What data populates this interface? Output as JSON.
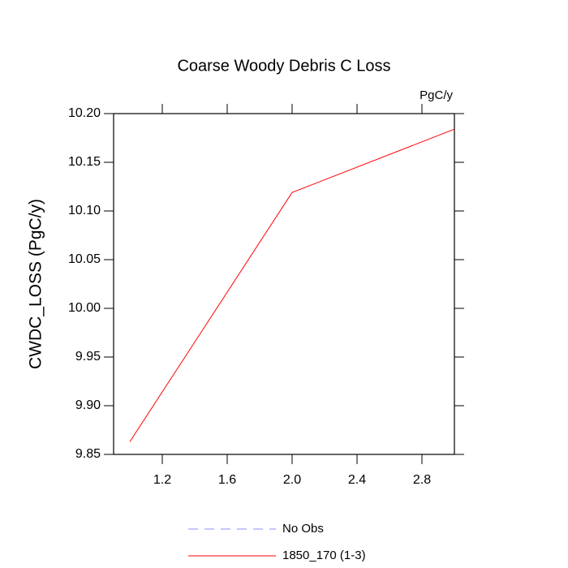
{
  "chart_data": {
    "type": "line",
    "title": "Coarse Woody Debris C Loss",
    "units": "PgC/y",
    "y_label": "CWDC_LOSS  (PgC/y)",
    "x": [
      1,
      2,
      3
    ],
    "series": [
      {
        "name": "1850_170 (1-3)",
        "color": "#ff0000",
        "values": [
          9.863,
          10.119,
          10.184
        ]
      }
    ],
    "legend_extra": [
      {
        "name": "No Obs",
        "color": "#8c8cff",
        "dashed": true
      }
    ],
    "xlim": [
      0.9,
      3.0
    ],
    "xticks": [
      1.2,
      1.6,
      {
        "value": 2,
        "label": "2.0"
      },
      2.4,
      2.8
    ],
    "ylim": [
      9.85,
      10.2
    ],
    "yticks": [
      9.85,
      {
        "value": 9.9,
        "label": "9.90"
      },
      9.95,
      {
        "value": 10,
        "label": "10.00"
      },
      10.05,
      {
        "value": 10.1,
        "label": "10.10"
      },
      10.15,
      {
        "value": 10.2,
        "label": "10.20"
      }
    ]
  }
}
